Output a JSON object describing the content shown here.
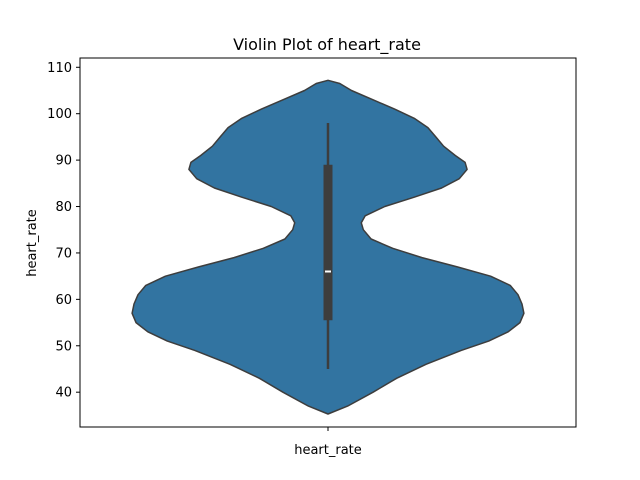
{
  "chart_data": {
    "type": "violin",
    "title": "Violin Plot of heart_rate",
    "xlabel": "",
    "ylabel": "heart_rate",
    "categories": [
      "heart_rate"
    ],
    "ylim": [
      32.5,
      112
    ],
    "yticks": [
      40,
      50,
      60,
      70,
      80,
      90,
      100,
      110
    ],
    "grid": false,
    "fill_color": "#3274a1",
    "edge_color": "#3d3d3d",
    "box_color": "#3d3d3d",
    "median_color": "#ffffff",
    "density_max_half_width": 0.79,
    "density": [
      {
        "y": 35.3,
        "w": 0.0
      },
      {
        "y": 37.0,
        "w": 0.1
      },
      {
        "y": 40.0,
        "w": 0.23
      },
      {
        "y": 43.0,
        "w": 0.35
      },
      {
        "y": 46.0,
        "w": 0.5
      },
      {
        "y": 49.0,
        "w": 0.68
      },
      {
        "y": 51.0,
        "w": 0.82
      },
      {
        "y": 53.0,
        "w": 0.92
      },
      {
        "y": 55.0,
        "w": 0.98
      },
      {
        "y": 57.0,
        "w": 1.0
      },
      {
        "y": 59.0,
        "w": 0.99
      },
      {
        "y": 61.0,
        "w": 0.97
      },
      {
        "y": 63.0,
        "w": 0.93
      },
      {
        "y": 65.0,
        "w": 0.83
      },
      {
        "y": 67.0,
        "w": 0.66
      },
      {
        "y": 69.0,
        "w": 0.48
      },
      {
        "y": 71.0,
        "w": 0.33
      },
      {
        "y": 73.0,
        "w": 0.22
      },
      {
        "y": 75.0,
        "w": 0.18
      },
      {
        "y": 76.5,
        "w": 0.17
      },
      {
        "y": 78.0,
        "w": 0.19
      },
      {
        "y": 80.0,
        "w": 0.29
      },
      {
        "y": 82.0,
        "w": 0.44
      },
      {
        "y": 84.0,
        "w": 0.58
      },
      {
        "y": 86.0,
        "w": 0.67
      },
      {
        "y": 88.0,
        "w": 0.71
      },
      {
        "y": 89.5,
        "w": 0.7
      },
      {
        "y": 91.0,
        "w": 0.65
      },
      {
        "y": 93.0,
        "w": 0.59
      },
      {
        "y": 95.0,
        "w": 0.55
      },
      {
        "y": 97.0,
        "w": 0.51
      },
      {
        "y": 99.0,
        "w": 0.44
      },
      {
        "y": 101.0,
        "w": 0.34
      },
      {
        "y": 103.0,
        "w": 0.23
      },
      {
        "y": 105.0,
        "w": 0.12
      },
      {
        "y": 106.5,
        "w": 0.06
      },
      {
        "y": 107.2,
        "w": 0.0
      }
    ],
    "box": {
      "whisker_low": 45,
      "q1": 55.5,
      "median": 66,
      "q3": 89,
      "whisker_high": 98
    }
  }
}
